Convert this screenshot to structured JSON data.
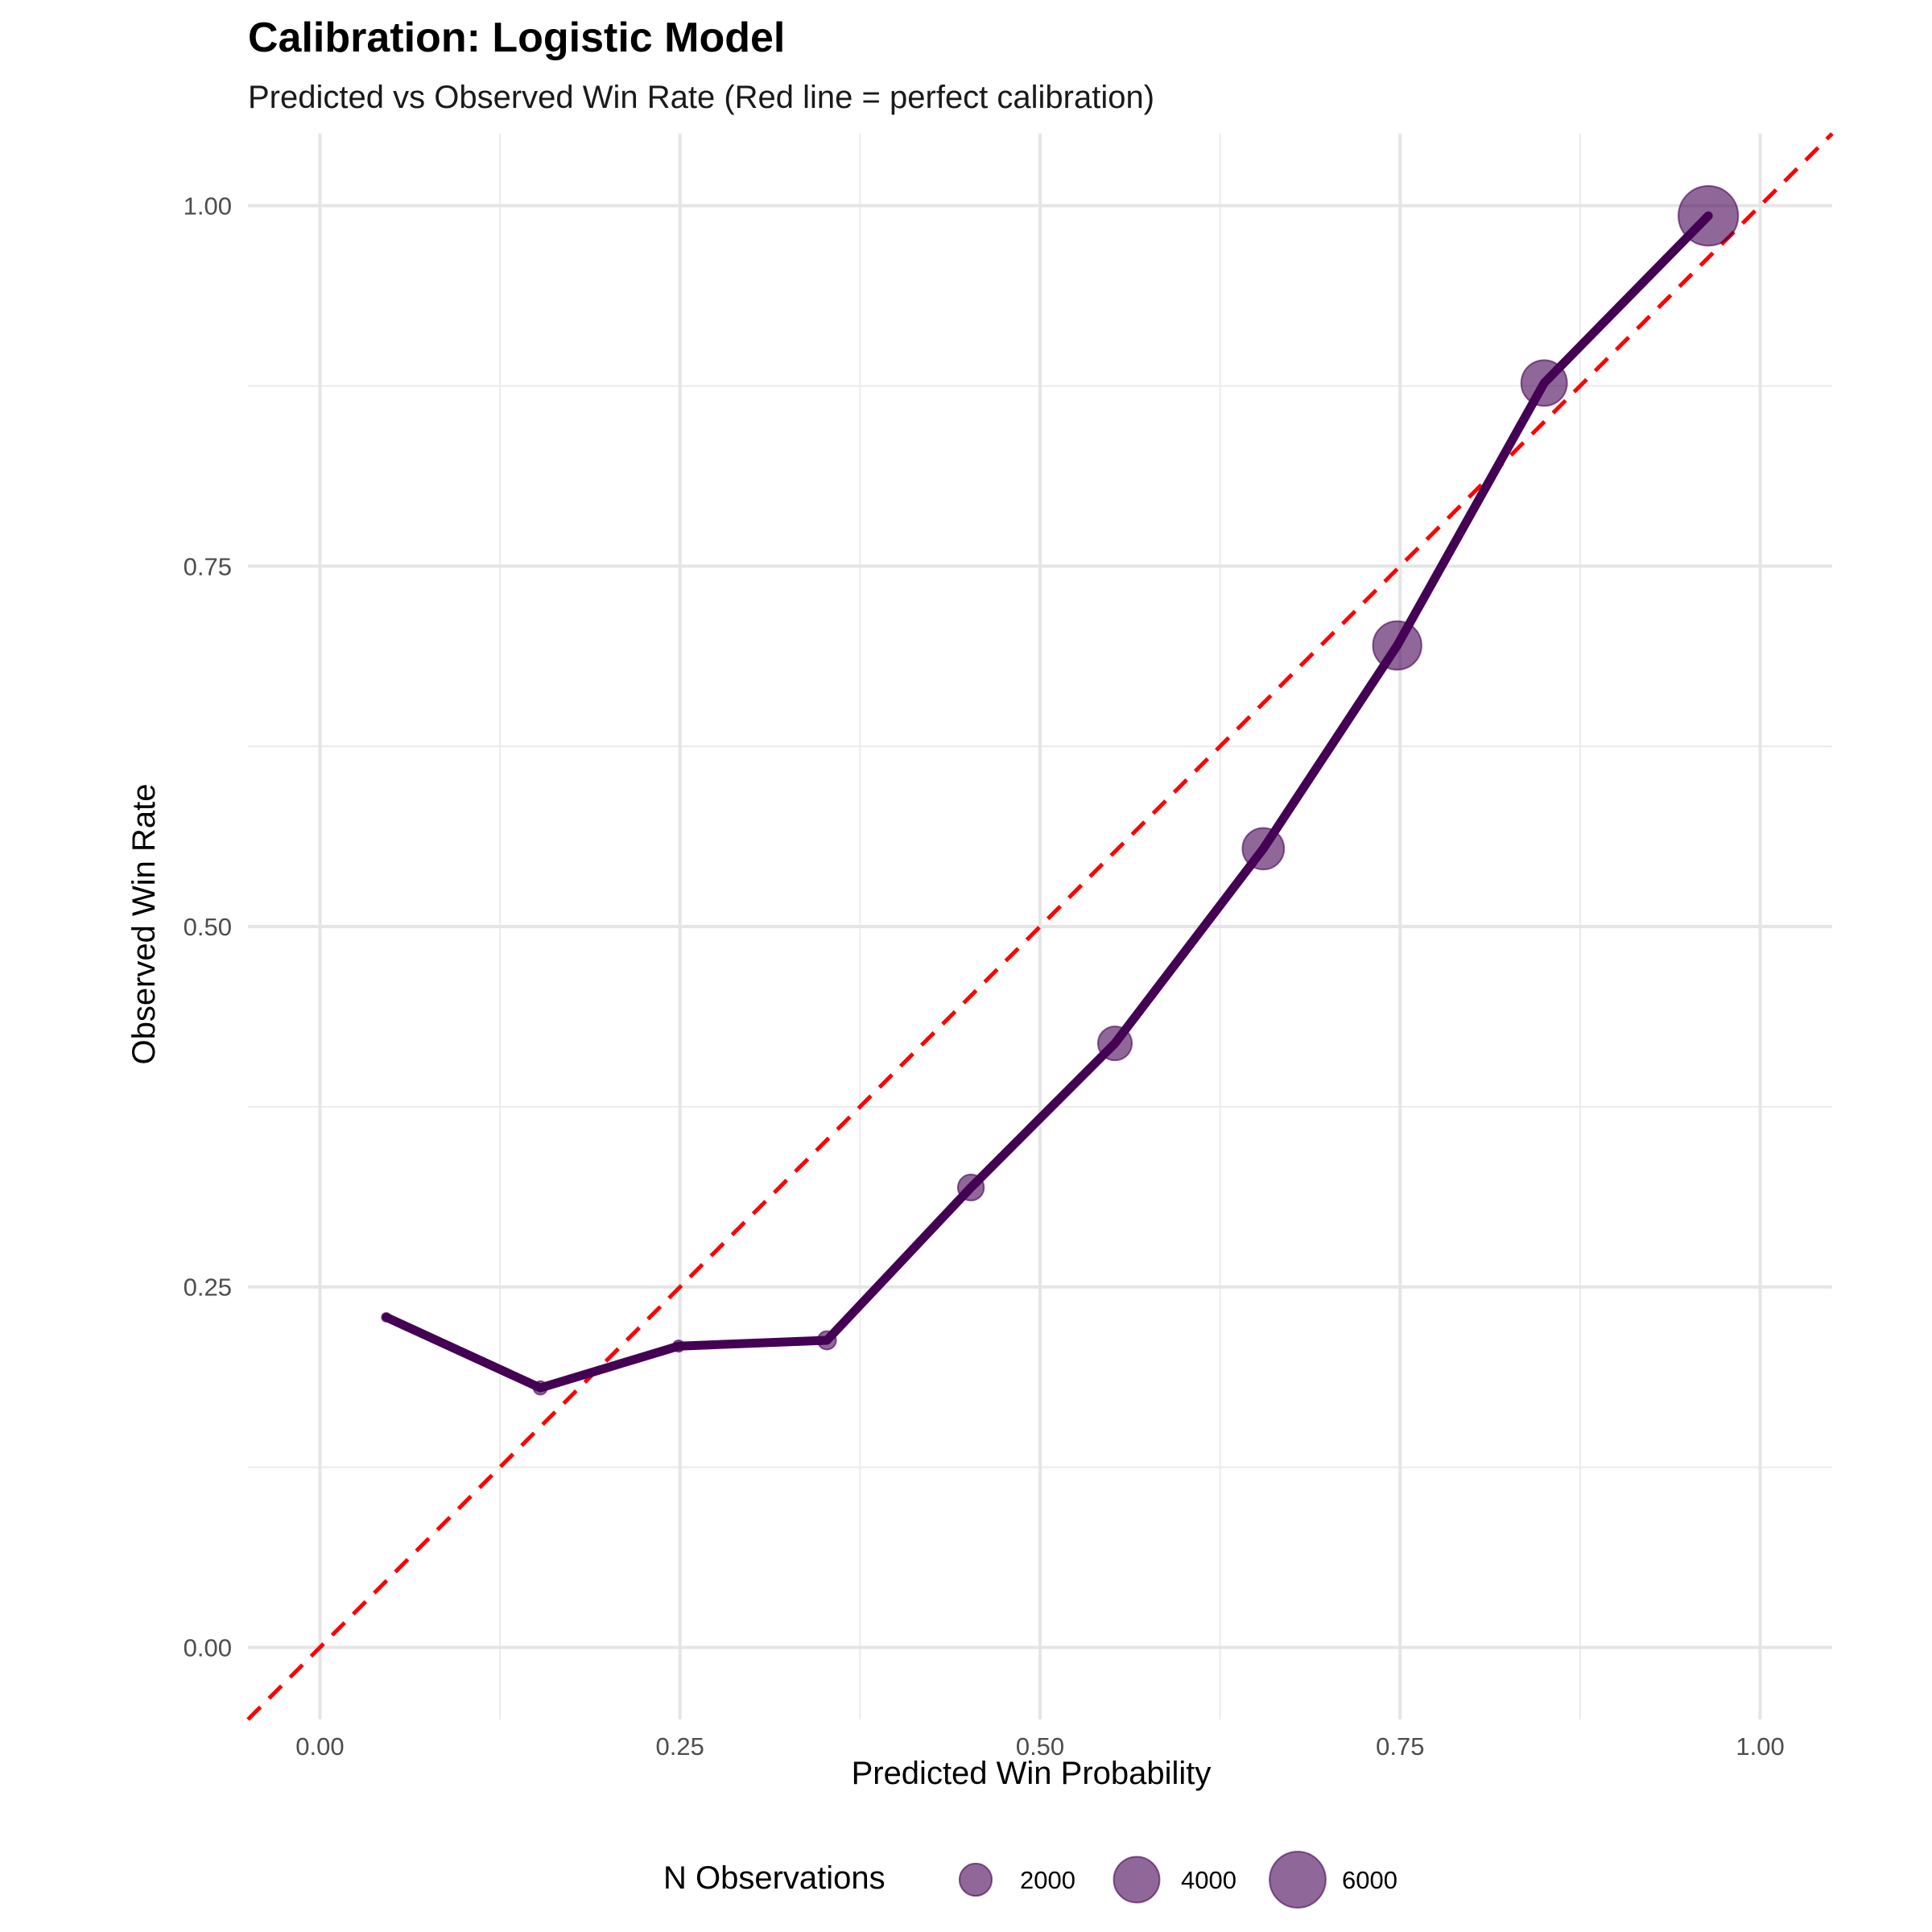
{
  "chart_data": {
    "type": "scatter",
    "title": "Calibration: Logistic Model",
    "subtitle": "Predicted vs Observed Win Rate (Red line = perfect calibration)",
    "xlabel": "Predicted Win Probability",
    "ylabel": "Observed Win Rate",
    "xlim": [
      -0.05,
      1.05
    ],
    "ylim": [
      -0.05,
      1.05
    ],
    "x_ticks": [
      0.0,
      0.25,
      0.5,
      0.75,
      1.0
    ],
    "x_tick_labels": [
      "0.00",
      "0.25",
      "0.50",
      "0.75",
      "1.00"
    ],
    "y_ticks": [
      0.0,
      0.25,
      0.5,
      0.75,
      1.0
    ],
    "y_tick_labels": [
      "0.00",
      "0.25",
      "0.50",
      "0.75",
      "1.00"
    ],
    "grid": true,
    "reference_line": {
      "x": [
        -0.05,
        1.05
      ],
      "y": [
        -0.05,
        1.05
      ],
      "color": "#ff0000",
      "style": "dashed"
    },
    "line_color": "#440154",
    "point_color": "#440154",
    "series": [
      {
        "x": [
          0.046,
          0.153,
          0.249,
          0.352,
          0.452,
          0.552,
          0.655,
          0.748,
          0.85,
          0.964
        ],
        "y": [
          0.229,
          0.18,
          0.209,
          0.213,
          0.319,
          0.419,
          0.554,
          0.695,
          0.877,
          0.993
        ],
        "n": [
          150,
          350,
          250,
          650,
          1300,
          2200,
          3300,
          4500,
          4000,
          6800
        ]
      }
    ],
    "legend": {
      "title": "N Observations",
      "position": "bottom",
      "labels": [
        "2000",
        "4000",
        "6000"
      ],
      "values": [
        2000,
        4000,
        6000
      ]
    }
  }
}
